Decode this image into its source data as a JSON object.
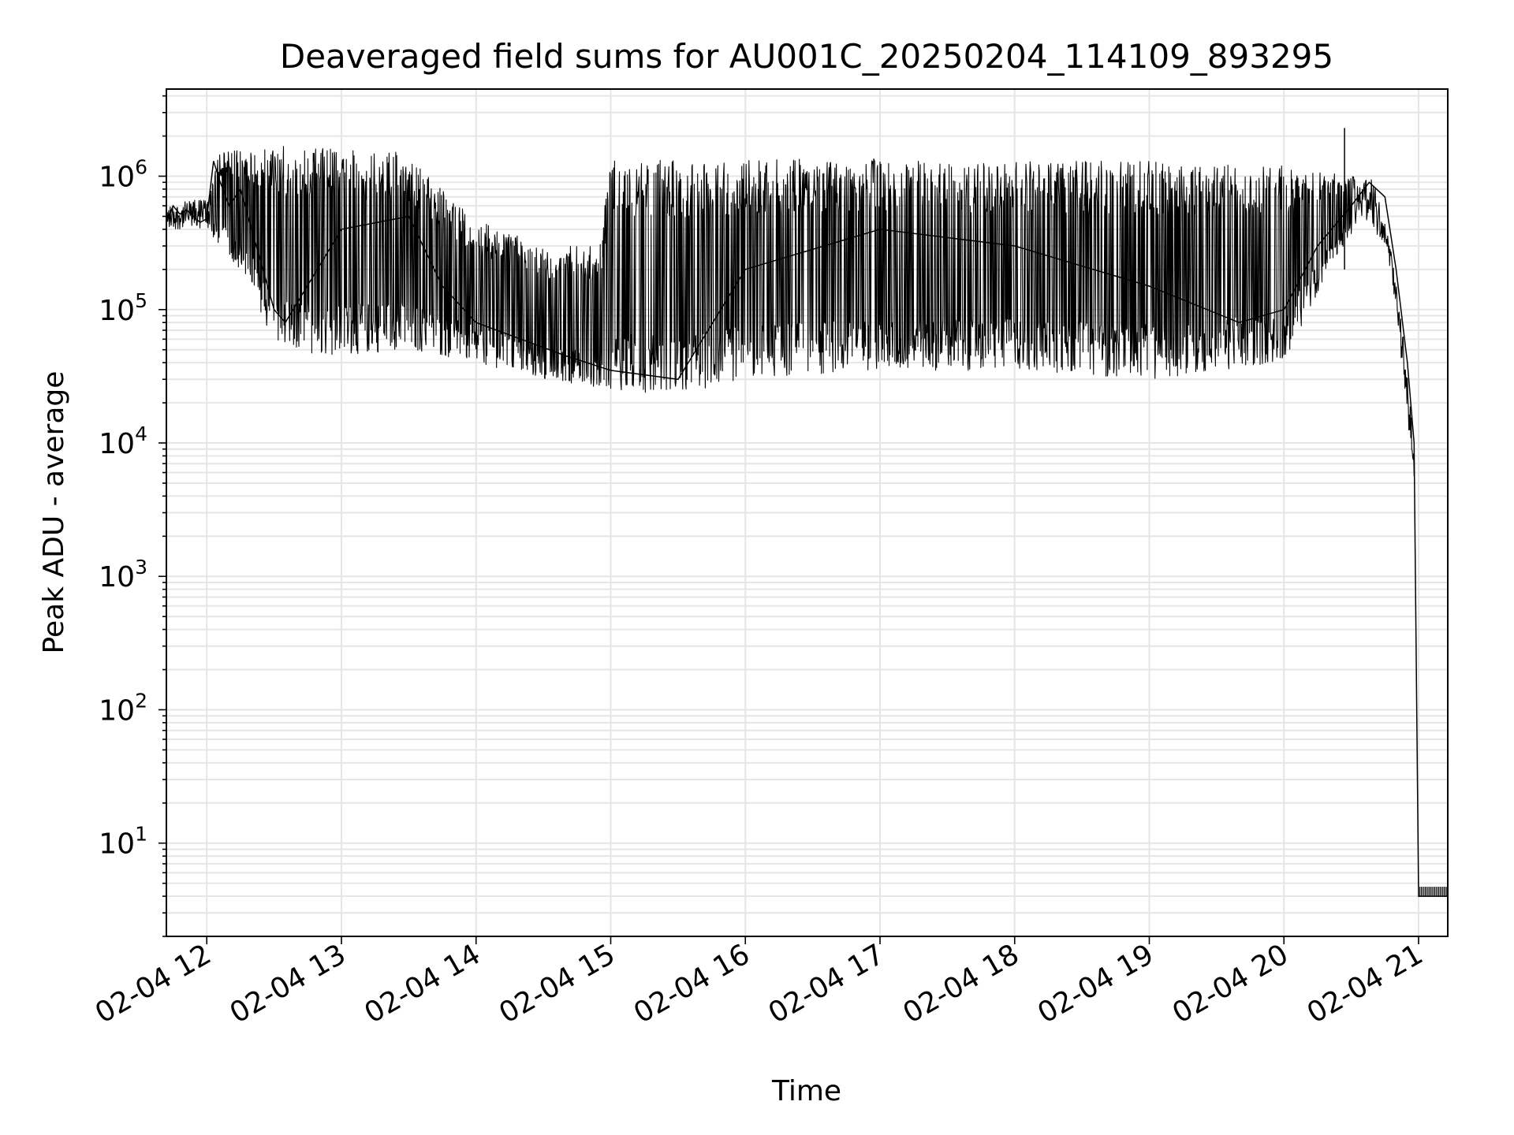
{
  "chart_data": {
    "type": "line",
    "title": "Deaveraged field sums for AU001C_20250204_114109_893295",
    "xlabel": "Time",
    "ylabel": "Peak ADU - average",
    "y_scale": "log",
    "ylim": [
      2,
      4500000
    ],
    "xlim": [
      "02-04 11:42",
      "02-04 21:13"
    ],
    "grid": true,
    "legend": "none",
    "line_color": "#000000",
    "x_ticks": [
      {
        "value": "02-04 12:00",
        "label": "02-04 12"
      },
      {
        "value": "02-04 13:00",
        "label": "02-04 13"
      },
      {
        "value": "02-04 14:00",
        "label": "02-04 14"
      },
      {
        "value": "02-04 15:00",
        "label": "02-04 15"
      },
      {
        "value": "02-04 16:00",
        "label": "02-04 16"
      },
      {
        "value": "02-04 17:00",
        "label": "02-04 17"
      },
      {
        "value": "02-04 18:00",
        "label": "02-04 18"
      },
      {
        "value": "02-04 19:00",
        "label": "02-04 19"
      },
      {
        "value": "02-04 20:00",
        "label": "02-04 20"
      },
      {
        "value": "02-04 21:00",
        "label": "02-04 21"
      }
    ],
    "y_ticks": [
      {
        "value": 10,
        "base": "10",
        "exp": "1"
      },
      {
        "value": 100,
        "base": "10",
        "exp": "2"
      },
      {
        "value": 1000,
        "base": "10",
        "exp": "3"
      },
      {
        "value": 10000,
        "base": "10",
        "exp": "4"
      },
      {
        "value": 100000,
        "base": "10",
        "exp": "5"
      },
      {
        "value": 1000000,
        "base": "10",
        "exp": "6"
      }
    ],
    "series": [
      {
        "points": [
          [
            "02-04 11:42",
            450000
          ],
          [
            "02-04 11:45",
            600000
          ],
          [
            "02-04 11:48",
            520000
          ],
          [
            "02-04 11:51",
            560000
          ],
          [
            "02-04 11:54",
            500000
          ],
          [
            "02-04 11:57",
            450000
          ],
          [
            "02-04 12:00",
            480000
          ],
          [
            "02-04 12:03",
            1300000
          ],
          [
            "02-04 12:06",
            900000
          ],
          [
            "02-04 12:10",
            600000
          ],
          [
            "02-04 12:15",
            800000
          ],
          [
            "02-04 12:20",
            400000
          ],
          [
            "02-04 12:25",
            200000
          ],
          [
            "02-04 12:30",
            100000
          ],
          [
            "02-04 12:35",
            80000
          ],
          [
            "02-04 13:00",
            400000
          ],
          [
            "02-04 13:30",
            500000
          ],
          [
            "02-04 13:45",
            150000
          ],
          [
            "02-04 14:00",
            80000
          ],
          [
            "02-04 14:20",
            60000
          ],
          [
            "02-04 14:40",
            45000
          ],
          [
            "02-04 15:00",
            35000
          ],
          [
            "02-04 15:30",
            30000
          ],
          [
            "02-04 16:00",
            200000
          ],
          [
            "02-04 17:00",
            400000
          ],
          [
            "02-04 18:00",
            300000
          ],
          [
            "02-04 19:00",
            150000
          ],
          [
            "02-04 19:40",
            80000
          ],
          [
            "02-04 20:00",
            100000
          ],
          [
            "02-04 20:15",
            300000
          ],
          [
            "02-04 20:30",
            600000
          ],
          [
            "02-04 20:38",
            900000
          ],
          [
            "02-04 20:45",
            700000
          ],
          [
            "02-04 20:50",
            200000
          ],
          [
            "02-04 20:55",
            40000
          ],
          [
            "02-04 20:58",
            10000
          ],
          [
            "02-04 21:00",
            4
          ],
          [
            "02-04 21:13",
            4
          ]
        ],
        "upper_envelope": [
          [
            "02-04 11:42",
            600000
          ],
          [
            "02-04 12:00",
            700000
          ],
          [
            "02-04 12:05",
            1500000
          ],
          [
            "02-04 12:30",
            1700000
          ],
          [
            "02-04 13:00",
            1600000
          ],
          [
            "02-04 13:30",
            1500000
          ],
          [
            "02-04 13:45",
            800000
          ],
          [
            "02-04 14:00",
            500000
          ],
          [
            "02-04 14:30",
            300000
          ],
          [
            "02-04 14:55",
            300000
          ],
          [
            "02-04 15:00",
            1300000
          ],
          [
            "02-04 16:00",
            1350000
          ],
          [
            "02-04 17:00",
            1350000
          ],
          [
            "02-04 18:00",
            1300000
          ],
          [
            "02-04 19:00",
            1300000
          ],
          [
            "02-04 20:00",
            1200000
          ],
          [
            "02-04 20:30",
            1000000
          ],
          [
            "02-04 20:40",
            1000000
          ],
          [
            "02-04 20:50",
            200000
          ],
          [
            "02-04 20:58",
            10000
          ],
          [
            "02-04 21:00",
            4
          ],
          [
            "02-04 21:13",
            4
          ]
        ],
        "lower_envelope": [
          [
            "02-04 11:42",
            400000
          ],
          [
            "02-04 12:00",
            400000
          ],
          [
            "02-04 12:20",
            150000
          ],
          [
            "02-04 12:30",
            50000
          ],
          [
            "02-04 13:00",
            45000
          ],
          [
            "02-04 13:30",
            50000
          ],
          [
            "02-04 14:00",
            40000
          ],
          [
            "02-04 14:30",
            30000
          ],
          [
            "02-04 15:00",
            25000
          ],
          [
            "02-04 15:30",
            23000
          ],
          [
            "02-04 16:00",
            30000
          ],
          [
            "02-04 17:00",
            35000
          ],
          [
            "02-04 18:00",
            35000
          ],
          [
            "02-04 19:00",
            30000
          ],
          [
            "02-04 20:00",
            40000
          ],
          [
            "02-04 20:20",
            200000
          ],
          [
            "02-04 20:35",
            500000
          ],
          [
            "02-04 20:45",
            300000
          ],
          [
            "02-04 20:50",
            100000
          ],
          [
            "02-04 20:58",
            5000
          ],
          [
            "02-04 21:00",
            4
          ],
          [
            "02-04 21:13",
            4
          ]
        ],
        "spike_max": [
          "02-04 20:27",
          2300000
        ]
      }
    ]
  }
}
